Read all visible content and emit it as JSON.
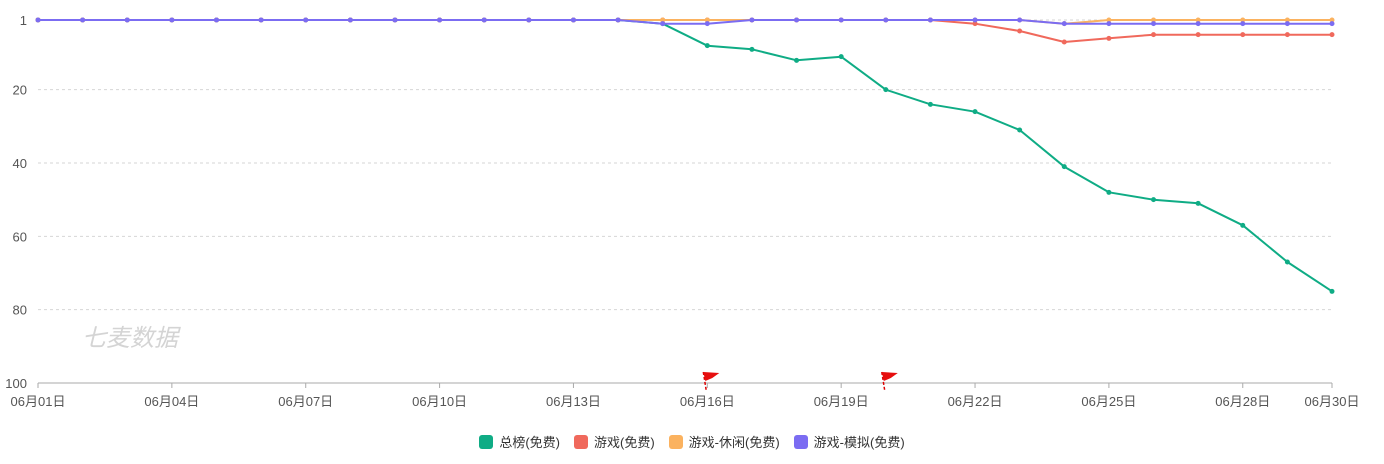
{
  "watermark": "七麦数据",
  "chart_data": {
    "type": "line",
    "x": [
      "06月01日",
      "06月02日",
      "06月03日",
      "06月04日",
      "06月05日",
      "06月06日",
      "06月07日",
      "06月08日",
      "06月09日",
      "06月10日",
      "06月11日",
      "06月12日",
      "06月13日",
      "06月14日",
      "06月15日",
      "06月16日",
      "06月17日",
      "06月18日",
      "06月19日",
      "06月20日",
      "06月21日",
      "06月22日",
      "06月23日",
      "06月24日",
      "06月25日",
      "06月26日",
      "06月27日",
      "06月28日",
      "06月29日",
      "06月30日"
    ],
    "x_tick_labels": [
      "06月01日",
      "06月04日",
      "06月07日",
      "06月10日",
      "06月13日",
      "06月16日",
      "06月19日",
      "06月22日",
      "06月25日",
      "06月28日",
      "06月30日"
    ],
    "y_ticks": [
      1,
      20,
      40,
      60,
      80,
      100
    ],
    "ylim": [
      1,
      100
    ],
    "y_inverted": true,
    "grid": "horizontal dashed",
    "legend_position": "bottom",
    "flag_markers": [
      "06月16日",
      "06月20日"
    ],
    "series": [
      {
        "name": "总榜(免费)",
        "color": "#0fac85",
        "values": [
          1,
          1,
          1,
          1,
          1,
          1,
          1,
          1,
          1,
          1,
          1,
          1,
          1,
          1,
          2,
          8,
          9,
          12,
          11,
          20,
          24,
          26,
          31,
          41,
          48,
          50,
          51,
          57,
          67,
          75
        ]
      },
      {
        "name": "游戏(免费)",
        "color": "#f0695c",
        "values": [
          1,
          1,
          1,
          1,
          1,
          1,
          1,
          1,
          1,
          1,
          1,
          1,
          1,
          1,
          1,
          1,
          1,
          1,
          1,
          1,
          1,
          2,
          4,
          7,
          6,
          5,
          5,
          5,
          5,
          5
        ]
      },
      {
        "name": "游戏-休闲(免费)",
        "color": "#fbb25f",
        "values": [
          1,
          1,
          1,
          1,
          1,
          1,
          1,
          1,
          1,
          1,
          1,
          1,
          1,
          1,
          1,
          1,
          1,
          1,
          1,
          1,
          1,
          1,
          1,
          2,
          1,
          1,
          1,
          1,
          1,
          1
        ]
      },
      {
        "name": "游戏-模拟(免费)",
        "color": "#7b6cf2",
        "values": [
          1,
          1,
          1,
          1,
          1,
          1,
          1,
          1,
          1,
          1,
          1,
          1,
          1,
          1,
          2,
          2,
          1,
          1,
          1,
          1,
          1,
          1,
          1,
          2,
          2,
          2,
          2,
          2,
          2,
          2
        ]
      }
    ]
  }
}
